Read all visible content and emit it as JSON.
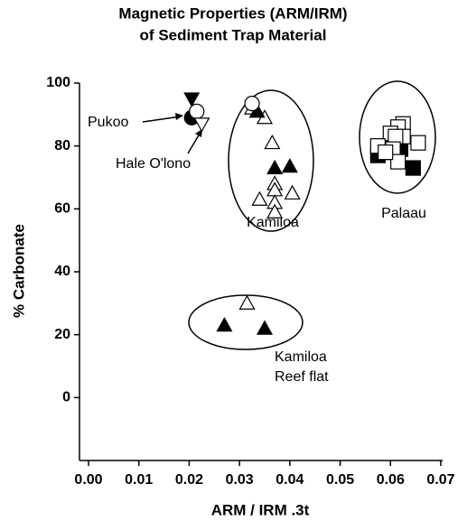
{
  "chart_data": {
    "type": "scatter",
    "title": [
      "Magnetic Properties (ARM/IRM)",
      "of Sediment Trap Material"
    ],
    "xlabel": "ARM / IRM .3t",
    "ylabel": "% Carbonate",
    "xlim": [
      0,
      0.07
    ],
    "ylim": [
      -20,
      100
    ],
    "xticks": [
      {
        "value": 0,
        "label": "0.00"
      },
      0.01,
      0.02,
      0.03,
      0.04,
      0.05,
      0.06,
      0.07
    ],
    "yticks": [
      0,
      20,
      40,
      60,
      80,
      100
    ],
    "color": "#000000",
    "series": [
      {
        "marker": "triangle-up",
        "filled": false,
        "x": [
          0.0325,
          0.035,
          0.0365,
          0.037,
          0.037,
          0.034,
          0.0405,
          0.037,
          0.037,
          0.0315
        ],
        "y": [
          92,
          89,
          81,
          68,
          66,
          63,
          65,
          62,
          59,
          30
        ]
      },
      {
        "marker": "triangle-up",
        "filled": true,
        "x": [
          0.0335,
          0.037,
          0.04,
          0.027,
          0.035
        ],
        "y": [
          91,
          73,
          73.5,
          23,
          22
        ]
      },
      {
        "marker": "triangle-down",
        "filled": true,
        "x": [
          0.0205
        ],
        "y": [
          95
        ]
      },
      {
        "marker": "circle",
        "filled": true,
        "x": [
          0.0205
        ],
        "y": [
          89
        ]
      },
      {
        "marker": "circle",
        "filled": false,
        "x": [
          0.0215,
          0.0325
        ],
        "y": [
          91,
          93.5
        ]
      },
      {
        "marker": "triangle-down",
        "filled": false,
        "x": [
          0.0225
        ],
        "y": [
          87
        ]
      },
      {
        "marker": "square",
        "filled": true,
        "x": [
          0.059,
          0.0615,
          0.06,
          0.0575,
          0.0645,
          0.062
        ],
        "y": [
          80,
          81,
          78,
          77,
          73,
          79
        ]
      },
      {
        "marker": "square",
        "filled": false,
        "x": [
          0.0625,
          0.0615,
          0.06,
          0.0625,
          0.061,
          0.0655,
          0.0575,
          0.0605,
          0.0615,
          0.059
        ],
        "y": [
          87,
          86,
          84,
          83,
          83,
          81,
          80,
          79,
          75,
          78
        ]
      }
    ],
    "annotations": [
      "Pukoo",
      "Hale O'lono",
      "Kamiloa",
      "Palaau",
      "Kamiloa",
      "Reef flat"
    ]
  }
}
